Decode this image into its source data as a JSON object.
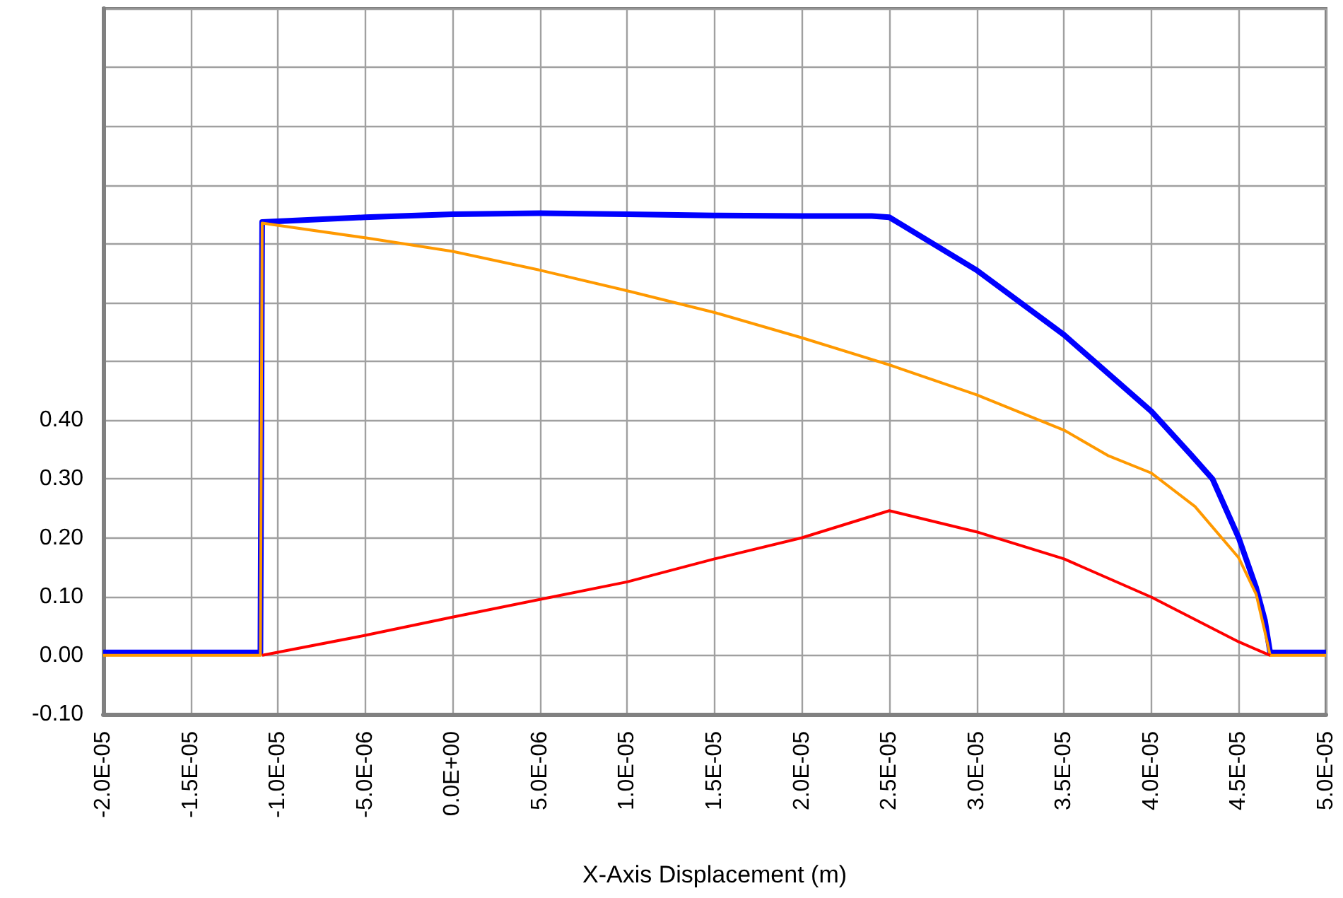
{
  "chart_data": {
    "type": "line",
    "xlabel": "X-Axis Displacement (m)",
    "xlim": [
      -2e-05,
      5e-05
    ],
    "xticks": [
      {
        "value": -2e-05,
        "label": "-2.0E-05"
      },
      {
        "value": -1.5e-05,
        "label": "-1.5E-05"
      },
      {
        "value": -1e-05,
        "label": "-1.0E-05"
      },
      {
        "value": -5e-06,
        "label": "-5.0E-06"
      },
      {
        "value": 0,
        "label": "0.0E+00"
      },
      {
        "value": 5e-06,
        "label": "5.0E-06"
      },
      {
        "value": 1e-05,
        "label": "1.0E-05"
      },
      {
        "value": 1.5e-05,
        "label": "1.5E-05"
      },
      {
        "value": 2e-05,
        "label": "2.0E-05"
      },
      {
        "value": 2.5e-05,
        "label": "2.5E-05"
      },
      {
        "value": 3e-05,
        "label": "3.0E-05"
      },
      {
        "value": 3.5e-05,
        "label": "3.5E-05"
      },
      {
        "value": 4e-05,
        "label": "4.0E-05"
      },
      {
        "value": 4.5e-05,
        "label": "4.5E-05"
      },
      {
        "value": 5e-05,
        "label": "5.0E-05"
      }
    ],
    "ylim": [
      -0.1,
      1.1
    ],
    "yticks": [
      {
        "value": -0.1,
        "label": "-0.10"
      },
      {
        "value": 0,
        "label": "0.00"
      },
      {
        "value": 0.1,
        "label": "0.10"
      },
      {
        "value": 0.2,
        "label": "0.20"
      },
      {
        "value": 0.3,
        "label": "0.30"
      },
      {
        "value": 0.4,
        "label": "0.40"
      },
      {
        "value": 0.5,
        "label": null
      },
      {
        "value": 0.6,
        "label": null
      },
      {
        "value": 0.7,
        "label": null
      },
      {
        "value": 0.8,
        "label": null
      },
      {
        "value": 0.9,
        "label": null
      },
      {
        "value": 1.0,
        "label": null
      },
      {
        "value": 1.1,
        "label": null
      }
    ],
    "grid": true,
    "marker": "none",
    "line_style": "solid",
    "series": [
      {
        "color": "#0000ff",
        "x": [
          -2e-05,
          -1.1e-05,
          -1.09e-05,
          -5e-06,
          0,
          5e-06,
          1e-05,
          1.5e-05,
          2e-05,
          2.4e-05,
          2.5e-05,
          3e-05,
          3.5e-05,
          4e-05,
          4.23e-05,
          4.35e-05,
          4.5e-05,
          4.6e-05,
          4.65e-05,
          4.68e-05,
          5e-05
        ],
        "values": [
          0.005,
          0.005,
          0.737,
          0.745,
          0.75,
          0.752,
          0.75,
          0.748,
          0.747,
          0.747,
          0.745,
          0.655,
          0.545,
          0.415,
          0.34,
          0.3,
          0.2,
          0.115,
          0.06,
          0.005,
          0.005
        ]
      },
      {
        "color": "#ff9900",
        "x": [
          -2e-05,
          -1.1e-05,
          -1.09e-05,
          -5e-06,
          0,
          5e-06,
          1e-05,
          1.5e-05,
          2e-05,
          2.5e-05,
          3e-05,
          3.5e-05,
          3.75e-05,
          4e-05,
          4.25e-05,
          4.5e-05,
          4.6e-05,
          4.65e-05,
          4.68e-05,
          5e-05
        ],
        "values": [
          0,
          0,
          0.735,
          0.71,
          0.687,
          0.655,
          0.62,
          0.583,
          0.54,
          0.494,
          0.443,
          0.383,
          0.34,
          0.31,
          0.253,
          0.166,
          0.104,
          0.04,
          0,
          0
        ]
      },
      {
        "color": "#ff0000",
        "x": [
          -1.09e-05,
          -5e-06,
          0,
          5e-06,
          1e-05,
          1.5e-05,
          2e-05,
          2.5e-05,
          3e-05,
          3.5e-05,
          4e-05,
          4.5e-05,
          4.68e-05
        ],
        "values": [
          0,
          0.034,
          0.065,
          0.095,
          0.125,
          0.164,
          0.2,
          0.246,
          0.21,
          0.164,
          0.099,
          0.023,
          0
        ]
      }
    ]
  }
}
